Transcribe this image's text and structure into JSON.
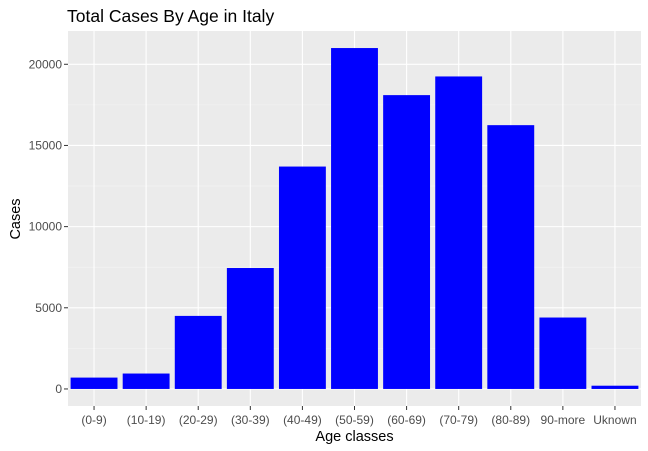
{
  "chart_data": {
    "type": "bar",
    "title": "Total Cases By Age in Italy",
    "xlabel": "Age classes",
    "ylabel": "Cases",
    "categories": [
      "(0-9)",
      "(10-19)",
      "(20-29)",
      "(30-39)",
      "(40-49)",
      "(50-59)",
      "(60-69)",
      "(70-79)",
      "(80-89)",
      "90-more",
      "Uknown"
    ],
    "values": [
      700,
      950,
      4500,
      7450,
      13700,
      21000,
      18100,
      19250,
      16250,
      4400,
      200
    ],
    "ylim": [
      -1050,
      22050
    ],
    "yticks": [
      0,
      5000,
      10000,
      15000,
      20000
    ],
    "ytick_labels": [
      "0",
      "5000",
      "10000",
      "15000",
      "20000"
    ],
    "grid": true,
    "colors": {
      "bar": "#0000ff",
      "panel": "#ebebeb",
      "grid_major": "#ffffff",
      "grid_minor": "#f5f5f5"
    }
  }
}
